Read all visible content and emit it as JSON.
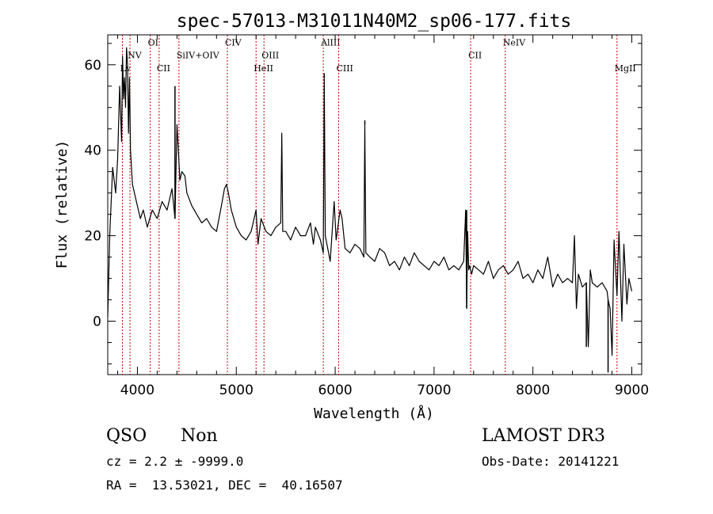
{
  "chart_data": {
    "type": "line",
    "title": "spec-57013-M31011N40M2_sp06-177.fits",
    "xlabel": "Wavelength (Å)",
    "ylabel": "Flux (relative)",
    "xlim": [
      3700,
      9100
    ],
    "ylim": [
      -12.5,
      67
    ],
    "xticks": [
      4000,
      5000,
      6000,
      7000,
      8000,
      9000
    ],
    "yticks": [
      0,
      20,
      40,
      60
    ],
    "x_minor_step": 200,
    "y_minor_step": 5,
    "grid": false,
    "series": [
      {
        "x": [
          3700,
          3720,
          3750,
          3780,
          3800,
          3820,
          3840,
          3850,
          3860,
          3870,
          3880,
          3890,
          3900,
          3910,
          3920,
          3930,
          3950,
          3970,
          4000,
          4030,
          4060,
          4100,
          4150,
          4200,
          4250,
          4300,
          4350,
          4380,
          4400,
          4430,
          4450,
          4480,
          4500,
          4550,
          4600,
          4650,
          4700,
          4750,
          4800,
          4850,
          4880,
          4900,
          4920,
          4950,
          5000,
          5050,
          5100,
          5150,
          5200,
          5220,
          5250,
          5300,
          5350,
          5400,
          5450,
          5460,
          5470,
          5500,
          5550,
          5600,
          5650,
          5700,
          5750,
          5780,
          5800,
          5850,
          5880,
          5890,
          5900,
          5950,
          5990,
          6010,
          6050,
          6070,
          6100,
          6150,
          6200,
          6250,
          6290,
          6300,
          6310,
          6350,
          6400,
          6450,
          6500,
          6550,
          6600,
          6650,
          6700,
          6750,
          6800,
          6850,
          6900,
          6950,
          7000,
          7050,
          7100,
          7150,
          7200,
          7250,
          7300,
          7320,
          7330,
          7340,
          7350,
          7360,
          7380,
          7400,
          7450,
          7500,
          7550,
          7600,
          7650,
          7700,
          7750,
          7800,
          7850,
          7900,
          7950,
          8000,
          8050,
          8100,
          8150,
          8200,
          8250,
          8300,
          8350,
          8400,
          8420,
          8440,
          8460,
          8500,
          8540,
          8560,
          8580,
          8600,
          8650,
          8700,
          8750,
          8760,
          8780,
          8800,
          8820,
          8850,
          8870,
          8900,
          8920,
          8950,
          8970,
          9000
        ],
        "y": [
          1,
          20,
          36,
          30,
          38,
          55,
          42,
          62,
          52,
          57,
          50,
          64,
          60,
          44,
          57,
          40,
          32,
          30,
          27,
          24,
          26,
          22,
          26,
          24,
          28,
          26,
          31,
          24,
          46,
          33,
          35,
          34,
          30,
          27,
          25,
          23,
          24,
          22,
          21,
          27,
          31,
          32,
          30,
          26,
          22,
          20,
          19,
          21,
          26,
          18,
          24,
          21,
          20,
          22,
          23,
          44,
          21,
          21,
          19,
          22,
          20,
          20,
          23,
          18,
          22,
          19,
          16,
          57,
          20,
          14,
          28,
          19,
          26,
          24,
          17,
          16,
          18,
          17,
          15,
          46,
          16,
          15,
          14,
          17,
          16,
          13,
          14,
          12,
          15,
          13,
          16,
          14,
          13,
          12,
          14,
          13,
          15,
          12,
          13,
          12,
          14,
          26,
          3,
          21,
          12,
          13,
          11,
          13,
          12,
          11,
          14,
          10,
          12,
          13,
          11,
          12,
          14,
          10,
          11,
          9,
          12,
          10,
          15,
          8,
          11,
          9,
          10,
          9,
          20,
          3,
          11,
          8,
          9,
          -6,
          12,
          9,
          8,
          9,
          7,
          5,
          3,
          -8,
          19,
          6,
          21,
          0,
          18,
          4,
          10,
          7
        ],
        "spikes": [
          {
            "x": 4380,
            "y": 55
          },
          {
            "x": 5460,
            "y": 44
          },
          {
            "x": 5890,
            "y": 58
          },
          {
            "x": 6300,
            "y": 47
          },
          {
            "x": 7330,
            "y": 26
          },
          {
            "x": 7330,
            "y": 3
          },
          {
            "x": 8420,
            "y": 20
          },
          {
            "x": 8540,
            "y": -6
          },
          {
            "x": 8760,
            "y": -12
          }
        ]
      }
    ],
    "lines": [
      {
        "label": "Lv",
        "x": 3848,
        "label_y": 58.5
      },
      {
        "label": "NV",
        "x": 3925,
        "label_y": 61.5
      },
      {
        "label": "OI",
        "x": 4130,
        "label_y": 64.5
      },
      {
        "label": "CII",
        "x": 4220,
        "label_y": 58.5
      },
      {
        "label": "SiIV+OIV",
        "x": 4420,
        "label_y": 61.5
      },
      {
        "label": "CIV",
        "x": 4910,
        "label_y": 64.5
      },
      {
        "label": "HeII",
        "x": 5200,
        "label_y": 58.5
      },
      {
        "label": "OIII",
        "x": 5280,
        "label_y": 61.5
      },
      {
        "label": "AlIII",
        "x": 5880,
        "label_y": 64.5
      },
      {
        "label": "CIII",
        "x": 6035,
        "label_y": 58.5
      },
      {
        "label": "CII",
        "x": 7370,
        "label_y": 61.5
      },
      {
        "label": "NeIV",
        "x": 7720,
        "label_y": 64.5
      },
      {
        "label": "MgII",
        "x": 8850,
        "label_y": 58.5
      }
    ],
    "line_color": "#000000",
    "marker_color": "#cc0000"
  },
  "info": {
    "class": "QSO",
    "subclass": "Non",
    "survey": "LAMOST DR3",
    "cz": "cz = 2.2 ± -9999.0",
    "obsdate": "Obs-Date: 20141221",
    "radec": "RA =  13.53021, DEC =  40.16507"
  }
}
